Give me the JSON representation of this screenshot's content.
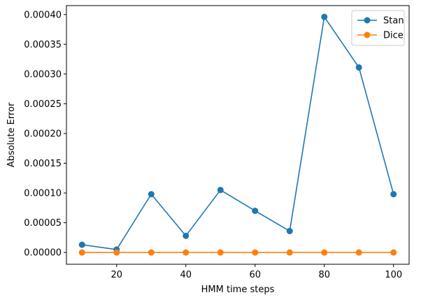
{
  "chart_data": {
    "type": "line",
    "xlabel": "HMM time steps",
    "ylabel": "Absolute Error",
    "x": [
      10,
      20,
      30,
      40,
      50,
      60,
      70,
      80,
      90,
      100
    ],
    "xlim": [
      5.5,
      104.5
    ],
    "ylim": [
      -1.98e-05,
      0.000415
    ],
    "xticks": [
      20,
      40,
      60,
      80,
      100
    ],
    "yticks": [
      0.0,
      5e-05,
      0.0001,
      0.00015,
      0.0002,
      0.00025,
      0.0003,
      0.00035,
      0.0004
    ],
    "xtick_labels": [
      "20",
      "40",
      "60",
      "80",
      "100"
    ],
    "ytick_labels": [
      "0.00000",
      "0.00005",
      "0.00010",
      "0.00015",
      "0.00020",
      "0.00025",
      "0.00030",
      "0.00035",
      "0.00040"
    ],
    "grid": false,
    "legend_position": "top-right",
    "series": [
      {
        "name": "Stan",
        "color": "#1f77b4",
        "values": [
          1.3e-05,
          5e-06,
          9.8e-05,
          2.8e-05,
          0.000105,
          7e-05,
          3.6e-05,
          0.000396,
          0.000311,
          9.8e-05
        ]
      },
      {
        "name": "Dice",
        "color": "#ff7f0e",
        "values": [
          0.0,
          0.0,
          0.0,
          0.0,
          0.0,
          0.0,
          0.0,
          0.0,
          0.0,
          0.0
        ]
      }
    ]
  }
}
